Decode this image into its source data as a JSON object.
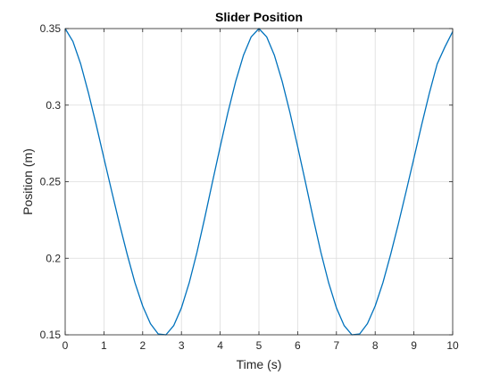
{
  "chart_data": {
    "type": "line",
    "title": "Slider Position",
    "xlabel": "Time (s)",
    "ylabel": "Position (m)",
    "xlim": [
      0,
      10
    ],
    "ylim": [
      0.15,
      0.35
    ],
    "xticks": [
      0,
      1,
      2,
      3,
      4,
      5,
      6,
      7,
      8,
      9,
      10
    ],
    "xtick_labels": [
      "0",
      "1",
      "2",
      "3",
      "4",
      "5",
      "6",
      "7",
      "8",
      "9",
      "10"
    ],
    "yticks": [
      0.15,
      0.2,
      0.25,
      0.3,
      0.35
    ],
    "ytick_labels": [
      "0.15",
      "0.2",
      "0.25",
      "0.3",
      "0.35"
    ],
    "grid": true,
    "series": [
      {
        "color": "#0072BD",
        "x": [
          0,
          0.2,
          0.4,
          0.6,
          0.8,
          1.0,
          1.2,
          1.4,
          1.6,
          1.8,
          2.0,
          2.2,
          2.4,
          2.6,
          2.8,
          3.0,
          3.2,
          3.4,
          3.6,
          3.8,
          4.0,
          4.2,
          4.4,
          4.6,
          4.8,
          5.0,
          5.2,
          5.4,
          5.6,
          5.8,
          6.0,
          6.2,
          6.4,
          6.6,
          6.8,
          7.0,
          7.2,
          7.4,
          7.6,
          7.8,
          8.0,
          8.2,
          8.4,
          8.6,
          8.8,
          9.0,
          9.2,
          9.4,
          9.6,
          9.8,
          10.0
        ],
        "y": [
          0.35,
          0.3416,
          0.3269,
          0.308,
          0.2872,
          0.2654,
          0.2438,
          0.2226,
          0.2026,
          0.1841,
          0.1688,
          0.1573,
          0.1506,
          0.15,
          0.156,
          0.1676,
          0.1839,
          0.2038,
          0.2262,
          0.2497,
          0.2728,
          0.2952,
          0.3155,
          0.3325,
          0.3446,
          0.35,
          0.3446,
          0.3325,
          0.3155,
          0.2952,
          0.2728,
          0.2497,
          0.2262,
          0.2038,
          0.1839,
          0.1676,
          0.156,
          0.15,
          0.1506,
          0.1573,
          0.1688,
          0.1841,
          0.2026,
          0.2226,
          0.2438,
          0.2654,
          0.2872,
          0.308,
          0.3269,
          0.338,
          0.348
        ]
      }
    ]
  }
}
